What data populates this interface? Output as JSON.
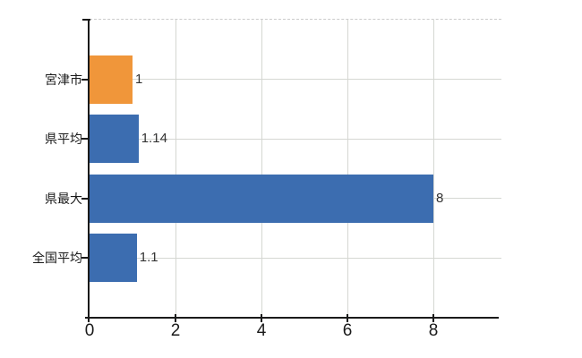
{
  "chart_data": {
    "type": "bar",
    "orientation": "horizontal",
    "title": "",
    "xlabel": "",
    "ylabel": "",
    "categories": [
      "宮津市",
      "県平均",
      "県最大",
      "全国平均"
    ],
    "values": [
      1,
      1.14,
      8,
      1.1
    ],
    "value_labels": [
      "1",
      "1.14",
      "8",
      "1.1"
    ],
    "bar_colors": [
      "#f0963a",
      "#3c6db0",
      "#3c6db0",
      "#3c6db0"
    ],
    "xticks": [
      "0",
      "2",
      "4",
      "6",
      "8"
    ],
    "xtick_values": [
      0,
      2,
      4,
      6,
      8
    ],
    "xlim": [
      0,
      9.58
    ],
    "grid": true,
    "legend": "none"
  },
  "colors": {
    "bar_blue": "#3c6db0",
    "bar_orange": "#f0963a",
    "gridline": "#d5d7d2",
    "axis": "#1a1a1a",
    "top_border": "#cbcbcb",
    "background": "#ffffff",
    "value_text": "#333333",
    "tick_text": "#1a1a1a"
  }
}
